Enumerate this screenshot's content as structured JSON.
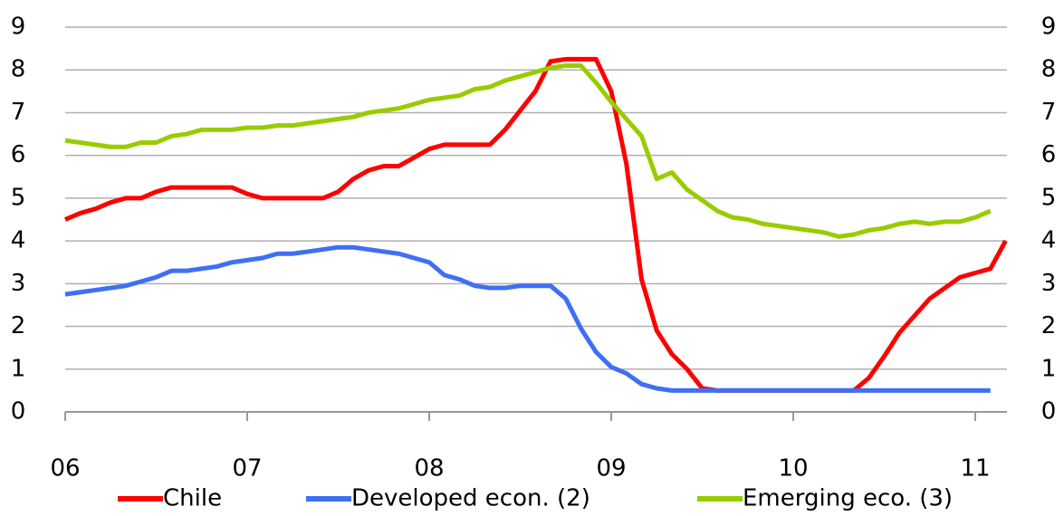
{
  "chart_data": {
    "type": "line",
    "x": [
      0,
      1,
      2,
      3,
      4,
      5,
      6,
      7,
      8,
      9,
      10,
      11,
      12,
      13,
      14,
      15,
      16,
      17,
      18,
      19,
      20,
      21,
      22,
      23,
      24,
      25,
      26,
      27,
      28,
      29,
      30,
      31,
      32,
      33,
      34,
      35,
      36,
      37,
      38,
      39,
      40,
      41,
      42,
      43,
      44,
      45,
      46,
      47,
      48,
      49,
      50,
      51,
      52,
      53,
      54,
      55,
      56,
      57,
      58,
      59,
      60,
      61,
      62
    ],
    "series": [
      {
        "name": "Chile",
        "color": "#ff0000",
        "values": [
          4.5,
          4.65,
          4.75,
          4.9,
          5.0,
          5.0,
          5.15,
          5.25,
          5.25,
          5.25,
          5.25,
          5.25,
          5.1,
          5.0,
          5.0,
          5.0,
          5.0,
          5.0,
          5.15,
          5.45,
          5.65,
          5.75,
          5.75,
          5.95,
          6.15,
          6.25,
          6.25,
          6.25,
          6.25,
          6.6,
          7.05,
          7.5,
          8.2,
          8.25,
          8.25,
          8.25,
          7.5,
          5.8,
          3.1,
          1.9,
          1.35,
          1.0,
          0.55,
          0.5,
          0.5,
          0.5,
          0.5,
          0.5,
          0.5,
          0.5,
          0.5,
          0.5,
          0.5,
          0.8,
          1.3,
          1.85,
          2.25,
          2.65,
          2.9,
          3.15,
          3.25,
          3.35,
          4.0
        ]
      },
      {
        "name": "Developed econ. (2)",
        "color": "#3f6ff5",
        "values": [
          2.75,
          2.8,
          2.85,
          2.9,
          2.95,
          3.05,
          3.15,
          3.3,
          3.3,
          3.35,
          3.4,
          3.5,
          3.55,
          3.6,
          3.7,
          3.7,
          3.75,
          3.8,
          3.85,
          3.85,
          3.8,
          3.75,
          3.7,
          3.6,
          3.5,
          3.2,
          3.1,
          2.95,
          2.9,
          2.9,
          2.95,
          2.95,
          2.95,
          2.65,
          1.95,
          1.4,
          1.05,
          0.9,
          0.65,
          0.55,
          0.5,
          0.5,
          0.5,
          0.5,
          0.5,
          0.5,
          0.5,
          0.5,
          0.5,
          0.5,
          0.5,
          0.5,
          0.5,
          0.5,
          0.5,
          0.5,
          0.5,
          0.5,
          0.5,
          0.5,
          0.5,
          0.5,
          null
        ]
      },
      {
        "name": "Emerging eco. (3)",
        "color": "#99cc00",
        "values": [
          6.35,
          6.3,
          6.25,
          6.2,
          6.2,
          6.3,
          6.3,
          6.45,
          6.5,
          6.6,
          6.6,
          6.6,
          6.65,
          6.65,
          6.7,
          6.7,
          6.75,
          6.8,
          6.85,
          6.9,
          7.0,
          7.05,
          7.1,
          7.2,
          7.3,
          7.35,
          7.4,
          7.55,
          7.6,
          7.75,
          7.85,
          7.95,
          8.05,
          8.1,
          8.1,
          7.7,
          7.25,
          6.85,
          6.45,
          5.45,
          5.6,
          5.2,
          4.95,
          4.7,
          4.55,
          4.5,
          4.4,
          4.35,
          4.3,
          4.25,
          4.2,
          4.1,
          4.15,
          4.25,
          4.3,
          4.4,
          4.45,
          4.4,
          4.45,
          4.45,
          4.55,
          4.7,
          null
        ]
      }
    ],
    "xlim": [
      0,
      62
    ],
    "xticks": [
      {
        "value": 0,
        "label": "06"
      },
      {
        "value": 12,
        "label": "07"
      },
      {
        "value": 24,
        "label": "08"
      },
      {
        "value": 36,
        "label": "09"
      },
      {
        "value": 48,
        "label": "10"
      },
      {
        "value": 60,
        "label": "11"
      }
    ],
    "ylim": [
      0,
      9
    ],
    "yticks": [
      0,
      1,
      2,
      3,
      4,
      5,
      6,
      7,
      8,
      9
    ],
    "y2lim": [
      0,
      9
    ],
    "y2ticks": [
      0,
      1,
      2,
      3,
      4,
      5,
      6,
      7,
      8,
      9
    ],
    "grid": true,
    "legend": "bottom"
  }
}
